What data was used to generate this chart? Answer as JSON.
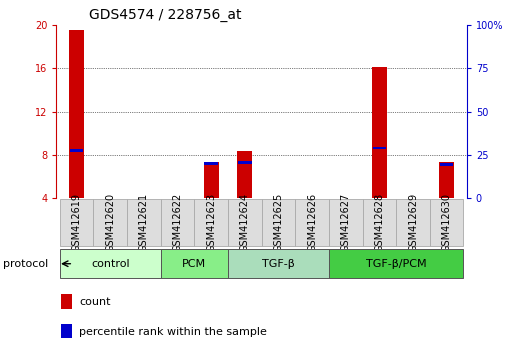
{
  "title": "GDS4574 / 228756_at",
  "samples": [
    "GSM412619",
    "GSM412620",
    "GSM412621",
    "GSM412622",
    "GSM412623",
    "GSM412624",
    "GSM412625",
    "GSM412626",
    "GSM412627",
    "GSM412628",
    "GSM412629",
    "GSM412630"
  ],
  "count_values": [
    19.5,
    4.0,
    4.0,
    4.0,
    7.3,
    8.4,
    4.0,
    4.0,
    4.0,
    16.1,
    4.0,
    7.3
  ],
  "percentile_values": [
    8.3,
    4.0,
    4.0,
    4.0,
    7.1,
    7.2,
    4.0,
    4.0,
    4.0,
    8.5,
    4.0,
    7.0
  ],
  "has_bar": [
    true,
    false,
    false,
    false,
    true,
    true,
    false,
    false,
    false,
    true,
    false,
    true
  ],
  "ylim_left": [
    4,
    20
  ],
  "ylim_right": [
    0,
    100
  ],
  "yticks_left": [
    4,
    8,
    12,
    16,
    20
  ],
  "yticks_right": [
    0,
    25,
    50,
    75,
    100
  ],
  "ytick_labels_right": [
    "0",
    "25",
    "50",
    "75",
    "100%"
  ],
  "groups": [
    {
      "label": "control",
      "start": 0,
      "end": 2,
      "color": "#ccffcc"
    },
    {
      "label": "PCM",
      "start": 3,
      "end": 4,
      "color": "#88ee88"
    },
    {
      "label": "TGF-β",
      "start": 5,
      "end": 7,
      "color": "#aaeebb"
    },
    {
      "label": "TGF-β/PCM",
      "start": 8,
      "end": 10,
      "color": "#44dd44"
    }
  ],
  "bar_color": "#cc0000",
  "percentile_color": "#0000cc",
  "grid_color": "#000000",
  "title_fontsize": 10,
  "tick_fontsize": 7,
  "label_fontsize": 7,
  "bar_width": 0.45,
  "background_color": "#ffffff",
  "sample_box_color": "#dddddd",
  "sample_box_edge": "#aaaaaa",
  "legend_items": [
    {
      "label": "count",
      "color": "#cc0000"
    },
    {
      "label": "percentile rank within the sample",
      "color": "#0000cc"
    }
  ]
}
